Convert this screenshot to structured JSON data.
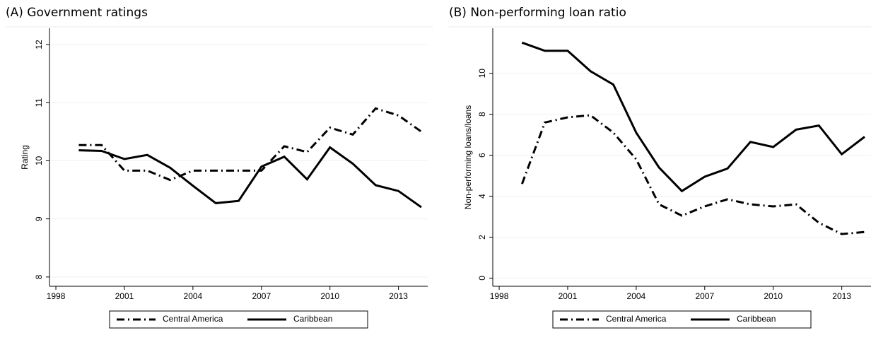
{
  "chart_data": [
    {
      "type": "line",
      "title": "(A)  Government ratings",
      "y_label": "Rating",
      "x": [
        1999,
        2000,
        2001,
        2002,
        2003,
        2004,
        2005,
        2006,
        2007,
        2008,
        2009,
        2010,
        2011,
        2012,
        2013,
        2014
      ],
      "series": [
        {
          "name": "Central America",
          "color": "#000000",
          "dash": "dash-dot",
          "values": [
            10.27,
            10.27,
            9.83,
            9.83,
            9.67,
            9.83,
            9.83,
            9.83,
            9.83,
            10.25,
            10.15,
            10.57,
            10.45,
            10.9,
            10.78,
            10.5
          ]
        },
        {
          "name": "Caribbean",
          "color": "#000000",
          "dash": "solid",
          "values": [
            10.18,
            10.17,
            10.03,
            10.1,
            9.88,
            9.57,
            9.27,
            9.31,
            9.9,
            10.07,
            9.68,
            10.23,
            9.95,
            9.58,
            9.48,
            9.2
          ]
        }
      ],
      "xlim": [
        1997.72,
        2014.28
      ],
      "xticks": [
        1998,
        2001,
        2004,
        2007,
        2010,
        2013
      ],
      "ylim": [
        7.84,
        12.28
      ],
      "yticks": [
        8,
        9,
        10,
        11,
        12
      ],
      "grid": true
    },
    {
      "type": "line",
      "title": "(B) Non-performing loan ratio",
      "y_label": "Non-performing loans/loans",
      "x": [
        1999,
        2000,
        2001,
        2002,
        2003,
        2004,
        2005,
        2006,
        2007,
        2008,
        2009,
        2010,
        2011,
        2012,
        2013,
        2014
      ],
      "series": [
        {
          "name": "Central America",
          "color": "#000000",
          "dash": "dash-dot",
          "values": [
            4.6,
            7.6,
            7.85,
            7.95,
            7.1,
            5.8,
            3.6,
            3.05,
            3.5,
            3.85,
            3.6,
            3.5,
            3.6,
            2.7,
            2.15,
            2.25
          ]
        },
        {
          "name": "Caribbean",
          "color": "#000000",
          "dash": "solid",
          "values": [
            11.5,
            11.1,
            11.1,
            10.1,
            9.45,
            7.1,
            5.4,
            4.25,
            4.95,
            5.35,
            6.65,
            6.4,
            7.25,
            7.45,
            6.05,
            6.9
          ]
        }
      ],
      "xlim": [
        1997.72,
        2014.28
      ],
      "xticks": [
        1998,
        2001,
        2004,
        2007,
        2010,
        2013
      ],
      "ylim": [
        -0.4,
        12.2
      ],
      "yticks": [
        0,
        2,
        4,
        6,
        8,
        10
      ],
      "grid": true
    }
  ]
}
